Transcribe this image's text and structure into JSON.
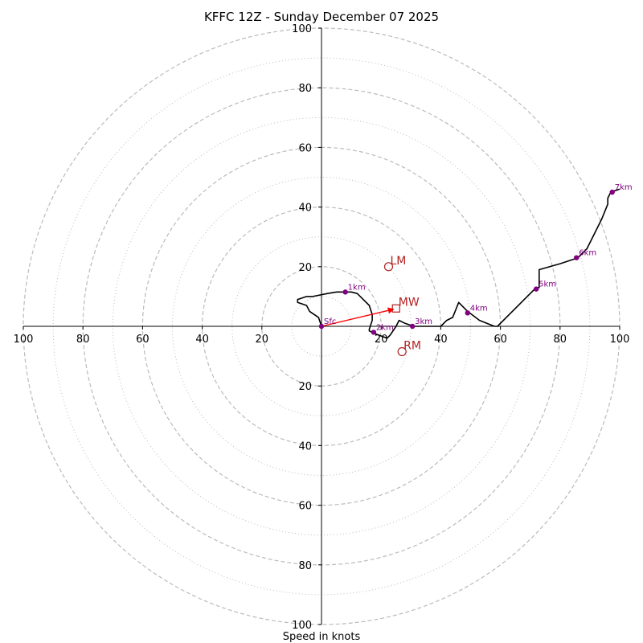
{
  "chart_data": {
    "type": "hodograph",
    "title": "KFFC 12Z - Sunday December 07 2025",
    "xlabel": "Speed in knots",
    "units": "knots",
    "max_speed": 100,
    "ring_major": [
      20,
      40,
      60,
      80,
      100
    ],
    "ring_minor": [
      10,
      30,
      50,
      70,
      90
    ],
    "x_tick_labels": [
      "100",
      "80",
      "60",
      "40",
      "20",
      "",
      "20",
      "40",
      "60",
      "80",
      "100"
    ],
    "x_tick_values": [
      -100,
      -80,
      -60,
      -40,
      -20,
      0,
      20,
      40,
      60,
      80,
      100
    ],
    "y_tick_labels_upper": [
      "20",
      "40",
      "60",
      "80",
      "100"
    ],
    "y_tick_values_upper": [
      20,
      40,
      60,
      80,
      100
    ],
    "y_tick_labels_lower": [
      "20",
      "40",
      "60",
      "80",
      "100"
    ],
    "y_tick_values_lower": [
      -20,
      -40,
      -60,
      -80,
      -100
    ],
    "trace_color": "#000000",
    "trace": [
      [
        0,
        0
      ],
      [
        -1,
        3
      ],
      [
        -4,
        5
      ],
      [
        -5,
        7
      ],
      [
        -8,
        8
      ],
      [
        -8,
        9
      ],
      [
        -5,
        10
      ],
      [
        -3,
        10
      ],
      [
        2,
        11
      ],
      [
        5,
        11.5
      ],
      [
        8,
        11.5
      ],
      [
        10,
        11.5
      ],
      [
        12,
        11
      ],
      [
        14,
        9
      ],
      [
        16,
        7
      ],
      [
        17,
        4
      ],
      [
        17,
        2
      ],
      [
        16,
        -1
      ],
      [
        16,
        -1.5
      ],
      [
        18,
        -2.5
      ],
      [
        22,
        -4
      ],
      [
        23,
        -3
      ],
      [
        25,
        0
      ],
      [
        26,
        2
      ],
      [
        28,
        1
      ],
      [
        31,
        0
      ],
      [
        35,
        0
      ],
      [
        40,
        0
      ],
      [
        42,
        2
      ],
      [
        44,
        3
      ],
      [
        46,
        8
      ],
      [
        49,
        5
      ],
      [
        53,
        2
      ],
      [
        58,
        0
      ],
      [
        59,
        0
      ],
      [
        63,
        4
      ],
      [
        68,
        9
      ],
      [
        72,
        13
      ],
      [
        73,
        13
      ],
      [
        73,
        19
      ],
      [
        80,
        21
      ],
      [
        86,
        23
      ],
      [
        89,
        26
      ],
      [
        93,
        34
      ],
      [
        94,
        36
      ],
      [
        96,
        41
      ],
      [
        96,
        43
      ],
      [
        97,
        45
      ],
      [
        100,
        46
      ]
    ],
    "height_points": [
      {
        "label": "Sfc",
        "u": 0,
        "v": 0
      },
      {
        "label": "1km",
        "u": 8,
        "v": 11.5
      },
      {
        "label": "2km",
        "u": 17.5,
        "v": -2
      },
      {
        "label": "3km",
        "u": 30.5,
        "v": 0
      },
      {
        "label": "4km",
        "u": 49,
        "v": 4.5
      },
      {
        "label": "5km",
        "u": 72,
        "v": 12.5
      },
      {
        "label": "6km",
        "u": 85.5,
        "v": 23
      },
      {
        "label": "7km",
        "u": 97.5,
        "v": 45
      }
    ],
    "height_point_color": "#800080",
    "storm_motion": {
      "color": "#b22222",
      "arrow_color": "#ff0000",
      "lm": {
        "label": "LM",
        "u": 22.5,
        "v": 20
      },
      "mw": {
        "label": "MW",
        "u": 25,
        "v": 6
      },
      "rm": {
        "label": "RM",
        "u": 27,
        "v": -8.5
      }
    },
    "grid_color": "#bbbbbb"
  }
}
